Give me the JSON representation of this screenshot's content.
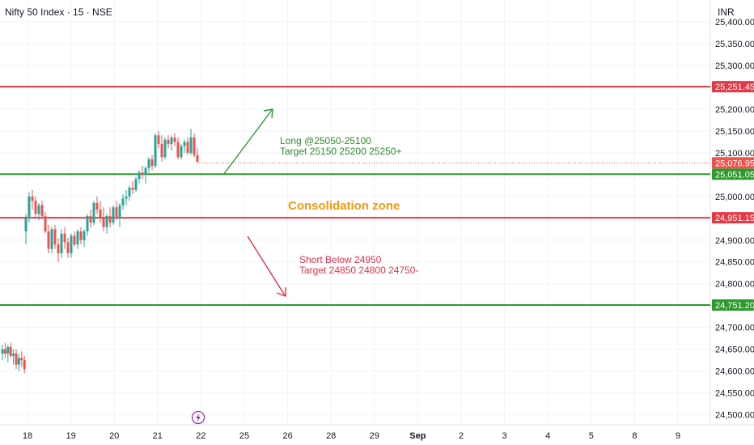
{
  "header": {
    "title": "Nifty 50 Index · 15 · NSE",
    "currency": "INR"
  },
  "colors": {
    "up": "#26a69a",
    "down": "#ef5350",
    "resistance": "#e53945",
    "support": "#2e9a2e",
    "consolidation_text": "#f59a0c",
    "long_text": "#2e8b2e",
    "short_text": "#e0344a",
    "grid": "#f0f3fa"
  },
  "chart_data": {
    "type": "candlestick",
    "x_ticks": [
      "18",
      "19",
      "20",
      "21",
      "22",
      "25",
      "26",
      "28",
      "29",
      "Sep",
      "2",
      "3",
      "4",
      "5",
      "8",
      "9"
    ],
    "y_ticks": [
      "25,400.00",
      "25,350.00",
      "25,300.00",
      "25,250.00",
      "25,200.00",
      "25,150.00",
      "25,100.00",
      "25,050.00",
      "25,000.00",
      "24,950.00",
      "24,900.00",
      "24,850.00",
      "24,800.00",
      "24,750.00",
      "24,700.00",
      "24,650.00",
      "24,600.00",
      "24,550.00",
      "24,500.00"
    ],
    "y_tick_values": [
      25400,
      25350,
      25300,
      25250,
      25200,
      25150,
      25100,
      25050,
      25000,
      24950,
      24900,
      24850,
      24800,
      24750,
      24700,
      24650,
      24600,
      24550,
      24500
    ],
    "ylim": [
      24477,
      25450
    ],
    "levels": [
      {
        "value": 25251.45,
        "label": "25,251.45",
        "color": "#e53945"
      },
      {
        "value": 25051.05,
        "label": "25,051.05",
        "color": "#2e9a2e"
      },
      {
        "value": 24951.15,
        "label": "24,951.15",
        "color": "#e53945"
      },
      {
        "value": 24751.2,
        "label": "24,751.20",
        "color": "#2e9a2e"
      }
    ],
    "last_price": {
      "value": 25076.95,
      "label": "25,076.95"
    },
    "annotations": {
      "long": [
        "Long @25050-25100",
        "Target 25150 25200 25250+"
      ],
      "short": [
        "Short Below 24950",
        "Target 24850 24800 24750-"
      ],
      "zone": "Consolidation zone"
    },
    "early_candles": [
      [
        24640,
        24660,
        24625,
        24650
      ],
      [
        24650,
        24665,
        24630,
        24640
      ],
      [
        24640,
        24660,
        24620,
        24655
      ],
      [
        24655,
        24665,
        24630,
        24635
      ],
      [
        24635,
        24650,
        24615,
        24640
      ],
      [
        24640,
        24650,
        24605,
        24615
      ],
      [
        24615,
        24640,
        24600,
        24630
      ],
      [
        24630,
        24645,
        24610,
        24625
      ],
      [
        24625,
        24635,
        24595,
        24605
      ]
    ],
    "candles": [
      [
        24920,
        24960,
        24890,
        24950
      ],
      [
        24950,
        25010,
        24940,
        25000
      ],
      [
        25000,
        25015,
        24970,
        24990
      ],
      [
        24990,
        25000,
        24950,
        24960
      ],
      [
        24960,
        24985,
        24945,
        24980
      ],
      [
        24980,
        24990,
        24950,
        24955
      ],
      [
        24955,
        24965,
        24915,
        24920
      ],
      [
        24920,
        24935,
        24870,
        24880
      ],
      [
        24880,
        24930,
        24870,
        24925
      ],
      [
        24925,
        24935,
        24880,
        24890
      ],
      [
        24890,
        24905,
        24850,
        24870
      ],
      [
        24870,
        24925,
        24860,
        24915
      ],
      [
        24915,
        24930,
        24880,
        24895
      ],
      [
        24895,
        24905,
        24860,
        24870
      ],
      [
        24870,
        24915,
        24860,
        24910
      ],
      [
        24910,
        24920,
        24885,
        24890
      ],
      [
        24890,
        24925,
        24880,
        24920
      ],
      [
        24920,
        24930,
        24890,
        24900
      ],
      [
        24900,
        24925,
        24885,
        24920
      ],
      [
        24920,
        24960,
        24910,
        24955
      ],
      [
        24955,
        24970,
        24930,
        24940
      ],
      [
        24940,
        24990,
        24935,
        24985
      ],
      [
        24985,
        25000,
        24960,
        24970
      ],
      [
        24970,
        24990,
        24940,
        24950
      ],
      [
        24950,
        24975,
        24920,
        24930
      ],
      [
        24930,
        24960,
        24915,
        24955
      ],
      [
        24955,
        24975,
        24930,
        24940
      ],
      [
        24940,
        24980,
        24935,
        24975
      ],
      [
        24975,
        24990,
        24945,
        24950
      ],
      [
        24950,
        24985,
        24930,
        24980
      ],
      [
        24980,
        25005,
        24970,
        24995
      ],
      [
        24995,
        25015,
        24980,
        25000
      ],
      [
        25000,
        25025,
        24990,
        25020
      ],
      [
        25020,
        25035,
        25005,
        25015
      ],
      [
        25015,
        25045,
        25010,
        25040
      ],
      [
        25040,
        25060,
        25030,
        25055
      ],
      [
        25055,
        25070,
        25040,
        25050
      ],
      [
        25050,
        25070,
        25030,
        25065
      ],
      [
        25065,
        25090,
        25055,
        25085
      ],
      [
        25085,
        25095,
        25060,
        25070
      ],
      [
        25070,
        25145,
        25065,
        25140
      ],
      [
        25140,
        25150,
        25110,
        25120
      ],
      [
        25120,
        25140,
        25080,
        25090
      ],
      [
        25090,
        25135,
        25085,
        25130
      ],
      [
        25130,
        25140,
        25110,
        25120
      ],
      [
        25120,
        25140,
        25105,
        25135
      ],
      [
        25135,
        25145,
        25115,
        25125
      ],
      [
        25125,
        25135,
        25085,
        25090
      ],
      [
        25090,
        25120,
        25085,
        25115
      ],
      [
        25115,
        25130,
        25100,
        25125
      ],
      [
        25125,
        25135,
        25095,
        25100
      ],
      [
        25100,
        25155,
        25095,
        25135
      ],
      [
        25135,
        25145,
        25090,
        25095
      ],
      [
        25095,
        25110,
        25075,
        25080
      ]
    ]
  }
}
